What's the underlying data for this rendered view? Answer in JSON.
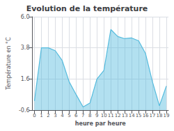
{
  "chart_data": {
    "type": "area",
    "title": "Evolution de la température",
    "xlabel": "heure par heure",
    "ylabel": "Température en °C",
    "x": [
      0,
      1,
      2,
      3,
      4,
      5,
      6,
      7,
      8,
      9,
      10,
      11,
      12,
      13,
      14,
      15,
      16,
      17,
      18,
      19
    ],
    "values": [
      0.05,
      3.8,
      3.8,
      3.6,
      2.9,
      1.4,
      0.5,
      -0.38,
      -0.1,
      1.6,
      2.2,
      5.1,
      4.6,
      4.45,
      4.5,
      4.3,
      3.4,
      1.4,
      -0.3,
      1.1
    ],
    "color": "#55bbdd",
    "xlim": [
      -0.3,
      19.3
    ],
    "xticks": [
      0,
      1,
      2,
      3,
      4,
      5,
      6,
      7,
      8,
      9,
      10,
      11,
      12,
      13,
      14,
      15,
      16,
      17,
      18,
      19
    ],
    "ylim": [
      -0.6,
      6.0
    ],
    "yticks": [
      -0.6,
      1.6,
      3.8,
      {
        "value": 6.0,
        "label": "6.0"
      }
    ],
    "grid": true
  }
}
